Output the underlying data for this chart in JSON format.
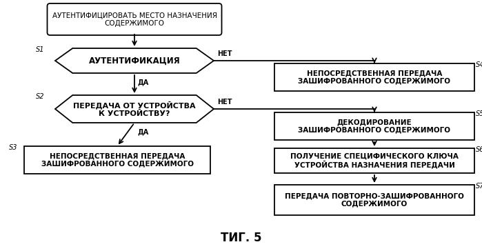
{
  "background_color": "#ffffff",
  "title": "ΤИГ. 5",
  "title_fontsize": 12,
  "title_bold": true,
  "start_text": "АУТЕНТИФИЦИРОВАТЬ МЕСТО НАЗНАЧЕНИЯ\nСОДЕРЖИМОГО",
  "s1_text": "АУТЕНТИФИКАЦИЯ",
  "s2_text": "ПЕРЕДАЧА ОТ УСТРОЙСТВА\nК УСТРОЙСТВУ?",
  "s3_text": "НЕПОСРЕДСТВЕННАЯ ПЕРЕДАЧА\nЗАШИФРОВАННОГО СОДЕРЖИМОГО",
  "s4_text": "НЕПОСРЕДСТВЕННАЯ ПЕРЕДАЧА\nЗАШИФРОВАННОГО СОДЕРЖИМОГО",
  "s5_text": "ДЕКОДИРОВАНИЕ\nЗАШИФРОВАННОГО СОДЕРЖИМОГО",
  "s6_text": "ПОЛУЧЕНИЕ СПЕЦИФИЧЕСКОГО КЛЮЧА\nУСТРОЙСТВА НАЗНАЧЕНИЯ ПЕРЕДАЧИ",
  "s7_text": "ПЕРЕДАЧА ПОВТОРНО-ЗАШИФРОВАННОГО\nСОДЕРЖИМОГО",
  "yes": "ДА",
  "no": "НЕТ"
}
